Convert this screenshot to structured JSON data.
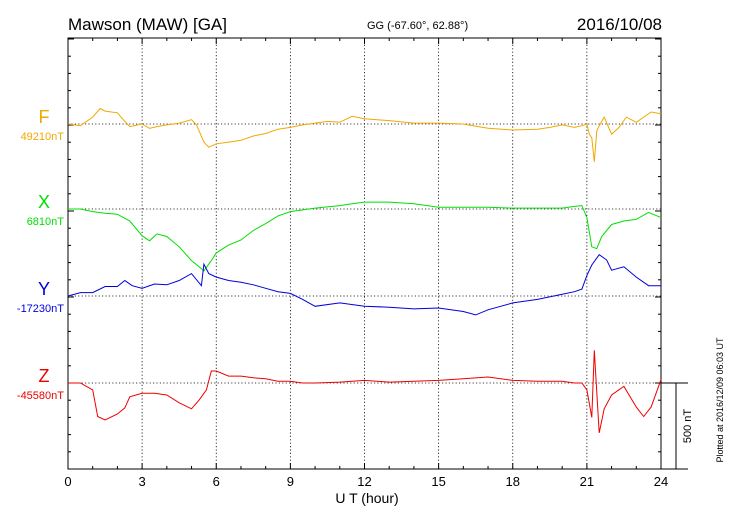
{
  "header": {
    "station": "Mawson (MAW)  [GA]",
    "coords": "GG (-67.60°,  62.88°)",
    "date": "2016/10/08"
  },
  "plotted_at": "Plotted at 2016/12/09 06:03 UT",
  "scale_label": "500 nT",
  "chart_data": {
    "type": "line",
    "xlabel": "U T (hour)",
    "xlim": [
      0,
      24
    ],
    "xticks": [
      "0",
      "3",
      "6",
      "9",
      "12",
      "15",
      "18",
      "21",
      "24"
    ],
    "grid": true,
    "series": [
      {
        "name": "F",
        "baseline_label": "49210nT",
        "color": "#f0a800",
        "x": [
          0,
          0.5,
          1,
          1.3,
          1.5,
          2,
          2.3,
          2.5,
          3,
          3.3,
          3.6,
          4,
          4.5,
          5,
          5.2,
          5.5,
          5.7,
          6,
          6.5,
          7,
          7.5,
          8,
          8.5,
          9,
          9.5,
          10,
          10.5,
          11,
          11.5,
          12,
          13,
          14,
          15,
          16,
          17,
          18,
          19,
          19.5,
          20,
          20.5,
          20.8,
          21,
          21.1,
          21.2,
          21.3,
          21.4,
          21.5,
          21.7,
          22,
          22.3,
          22.6,
          23,
          23.3,
          23.6,
          24
        ],
        "y": [
          0,
          -10,
          40,
          90,
          75,
          65,
          15,
          -15,
          0,
          -25,
          -15,
          -5,
          5,
          25,
          -5,
          -105,
          -135,
          -115,
          -105,
          -95,
          -70,
          -55,
          -30,
          -20,
          -5,
          5,
          15,
          10,
          45,
          30,
          20,
          5,
          5,
          0,
          -25,
          -35,
          -30,
          -20,
          -5,
          -20,
          -10,
          0,
          -60,
          -80,
          -220,
          -40,
          -10,
          40,
          -60,
          -20,
          40,
          10,
          40,
          70,
          60
        ]
      },
      {
        "name": "X",
        "baseline_label": "6810nT",
        "color": "#00e000",
        "x": [
          0,
          0.5,
          1,
          1.5,
          2,
          2.5,
          3,
          3.3,
          3.6,
          4,
          4.5,
          5,
          5.3,
          5.5,
          5.8,
          6,
          6.5,
          7,
          7.5,
          8,
          8.5,
          9,
          9.5,
          10,
          11,
          11.5,
          12,
          13,
          14,
          15,
          16,
          17,
          18,
          19,
          20,
          20.5,
          20.8,
          21,
          21.2,
          21.4,
          21.6,
          22,
          22.5,
          23,
          23.5,
          24
        ],
        "y": [
          0,
          0,
          -15,
          -25,
          -30,
          -70,
          -155,
          -185,
          -145,
          -160,
          -220,
          -300,
          -335,
          -360,
          -300,
          -255,
          -210,
          -180,
          -125,
          -85,
          -40,
          -15,
          -5,
          5,
          20,
          30,
          40,
          40,
          30,
          10,
          10,
          10,
          5,
          5,
          5,
          15,
          20,
          -50,
          -220,
          -230,
          -160,
          -90,
          -70,
          -60,
          -20,
          -50
        ]
      },
      {
        "name": "Y",
        "baseline_label": "-17230nT",
        "color": "#0000dd",
        "x": [
          0,
          0.5,
          1,
          1.5,
          2,
          2.3,
          2.6,
          3,
          3.5,
          4,
          4.5,
          5,
          5.4,
          5.5,
          5.7,
          6,
          6.5,
          7,
          7.5,
          8,
          8.5,
          9,
          9.5,
          10,
          11,
          12,
          13,
          14,
          15,
          16,
          16.5,
          17,
          18,
          19,
          20,
          20.5,
          20.8,
          21,
          21.2,
          21.5,
          21.8,
          22,
          22.5,
          23,
          23.5,
          24
        ],
        "y": [
          0,
          20,
          20,
          55,
          55,
          90,
          60,
          45,
          70,
          65,
          90,
          130,
          60,
          185,
          130,
          110,
          90,
          80,
          65,
          45,
          25,
          15,
          -20,
          -60,
          -40,
          -60,
          -65,
          -75,
          -70,
          -90,
          -110,
          -80,
          -40,
          -20,
          10,
          25,
          40,
          120,
          180,
          240,
          210,
          150,
          170,
          110,
          60,
          60
        ]
      },
      {
        "name": "Z",
        "baseline_label": "-45580nT",
        "color": "#ee0000",
        "x": [
          0,
          0.5,
          1,
          1.2,
          1.5,
          2,
          2.3,
          2.5,
          3,
          3.5,
          4,
          4.5,
          5,
          5.3,
          5.6,
          5.8,
          6,
          6.5,
          7,
          7.5,
          8,
          8.5,
          9,
          9.5,
          10,
          11,
          12,
          13,
          14,
          15,
          16,
          17,
          18,
          19,
          20,
          20.5,
          20.8,
          21,
          21.2,
          21.3,
          21.5,
          21.7,
          22,
          22.5,
          23,
          23.3,
          23.6,
          24
        ],
        "y": [
          0,
          0,
          -40,
          -195,
          -215,
          -180,
          -145,
          -80,
          -60,
          -60,
          -70,
          -115,
          -150,
          -100,
          -40,
          70,
          70,
          40,
          40,
          30,
          25,
          10,
          10,
          0,
          0,
          5,
          15,
          5,
          10,
          15,
          25,
          35,
          15,
          10,
          10,
          0,
          0,
          -40,
          -200,
          190,
          -290,
          -150,
          -70,
          -20,
          -140,
          -195,
          -140,
          20
        ]
      }
    ]
  }
}
